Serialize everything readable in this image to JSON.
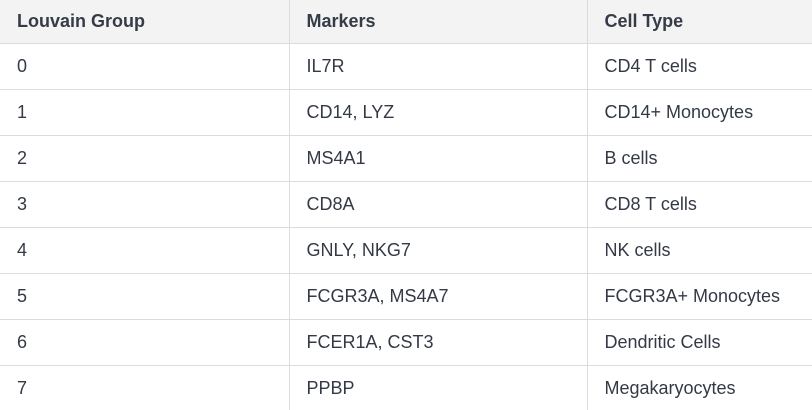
{
  "table": {
    "columns": [
      "Louvain Group",
      "Markers",
      "Cell Type"
    ],
    "rows": [
      [
        "0",
        "IL7R",
        "CD4 T cells"
      ],
      [
        "1",
        "CD14, LYZ",
        "CD14+ Monocytes"
      ],
      [
        "2",
        "MS4A1",
        "B cells"
      ],
      [
        "3",
        "CD8A",
        "CD8 T cells"
      ],
      [
        "4",
        "GNLY, NKG7",
        "NK cells"
      ],
      [
        "5",
        "FCGR3A, MS4A7",
        "FCGR3A+ Monocytes"
      ],
      [
        "6",
        "FCER1A, CST3",
        "Dendritic Cells"
      ],
      [
        "7",
        "PPBP",
        "Megakaryocytes"
      ]
    ]
  }
}
